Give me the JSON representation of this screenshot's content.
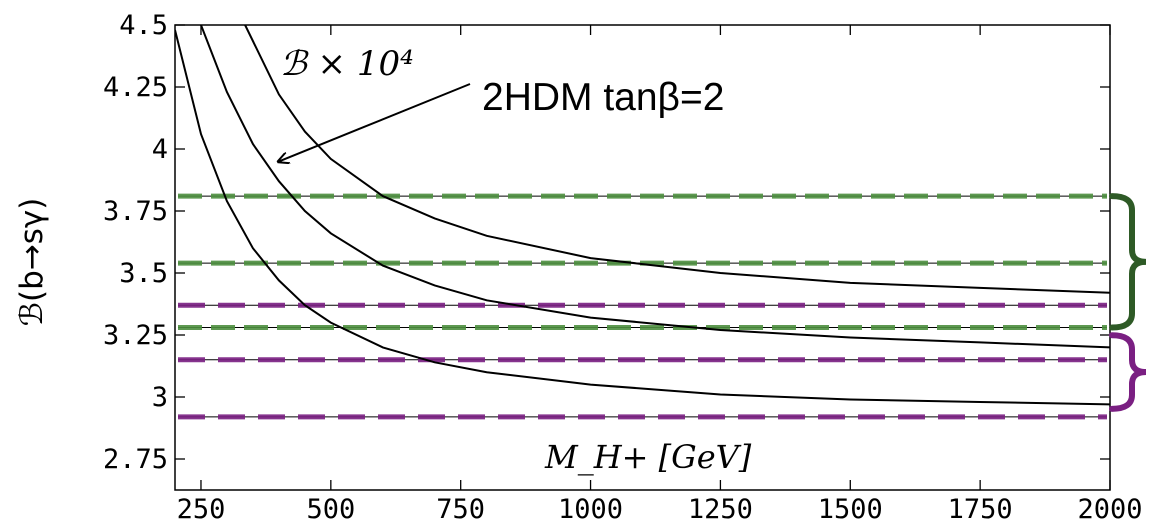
{
  "chart_data": {
    "type": "line",
    "ylabel": "ℬ(b→sγ)",
    "xlim": [
      200,
      2000
    ],
    "ylim": [
      2.625,
      4.5
    ],
    "x_ticks": [
      {
        "value": 250,
        "label": "250"
      },
      {
        "value": 500,
        "label": "500"
      },
      {
        "value": 750,
        "label": "750"
      },
      {
        "value": 1000,
        "label": "1000"
      },
      {
        "value": 1250,
        "label": "1250"
      },
      {
        "value": 1500,
        "label": "1500"
      },
      {
        "value": 1750,
        "label": "1750"
      },
      {
        "value": 2000,
        "label": "2000"
      }
    ],
    "y_ticks": [
      {
        "value": 2.75,
        "label": "2.75"
      },
      {
        "value": 3.0,
        "label": "3"
      },
      {
        "value": 3.25,
        "label": "3.25"
      },
      {
        "value": 3.5,
        "label": "3.5"
      },
      {
        "value": 3.75,
        "label": "3.75"
      },
      {
        "value": 4.0,
        "label": "4"
      },
      {
        "value": 4.25,
        "label": "4.25"
      },
      {
        "value": 4.5,
        "label": "4.5"
      }
    ],
    "inner_label_scale": "ℬ × 10⁴",
    "inner_label_x": "M_H+ [GeV]",
    "annotation": "2HDM tanβ=2",
    "annotation_arrow_target": {
      "x": 400,
      "y": 3.95
    },
    "curves": [
      {
        "x": [
          200,
          250,
          300,
          350,
          400,
          450,
          500,
          600,
          700,
          800,
          1000,
          1250,
          1500,
          1750,
          2000
        ],
        "y": [
          4.48,
          4.06,
          3.79,
          3.6,
          3.47,
          3.37,
          3.3,
          3.2,
          3.14,
          3.1,
          3.05,
          3.01,
          2.99,
          2.98,
          2.97
        ]
      },
      {
        "x": [
          250,
          300,
          350,
          400,
          450,
          500,
          600,
          700,
          800,
          1000,
          1250,
          1500,
          1750,
          2000
        ],
        "y": [
          4.5,
          4.23,
          4.02,
          3.87,
          3.75,
          3.66,
          3.53,
          3.45,
          3.39,
          3.32,
          3.27,
          3.24,
          3.22,
          3.2
        ]
      },
      {
        "x": [
          335,
          400,
          450,
          500,
          600,
          700,
          800,
          1000,
          1250,
          1500,
          1750,
          2000
        ],
        "y": [
          4.5,
          4.22,
          4.07,
          3.96,
          3.81,
          3.72,
          3.65,
          3.56,
          3.5,
          3.46,
          3.44,
          3.42
        ]
      }
    ],
    "bands": [
      {
        "color": "#4d8f3f",
        "values": [
          3.81,
          3.54,
          3.28
        ]
      },
      {
        "color": "#7a1f82",
        "values": [
          3.37,
          3.15,
          2.92
        ]
      }
    ],
    "brace_colors": [
      "#2e5a26",
      "#7a1f82"
    ]
  }
}
